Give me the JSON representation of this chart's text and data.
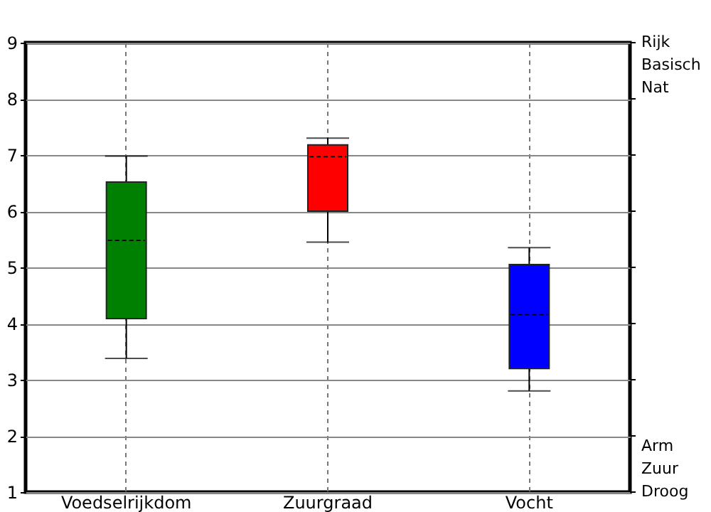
{
  "chart_data": {
    "type": "box",
    "categories": [
      "Voedselrijkdom",
      "Zuurgraad",
      "Vocht"
    ],
    "boxes": [
      {
        "low": 3.38,
        "q1": 4.09,
        "median": 5.48,
        "q3": 6.52,
        "high": 6.98
      },
      {
        "low": 5.45,
        "q1": 6.0,
        "median": 6.97,
        "q3": 7.18,
        "high": 7.3
      },
      {
        "low": 2.8,
        "q1": 3.2,
        "median": 4.16,
        "q3": 5.05,
        "high": 5.35
      }
    ],
    "colors": [
      "#008000",
      "#ff0000",
      "#0000ff"
    ],
    "ylim": [
      1,
      9
    ],
    "yticks": [
      1,
      2,
      3,
      4,
      5,
      6,
      7,
      8,
      9
    ],
    "grid": true,
    "annotations": [
      "Rijk\nBasisch\nNat",
      "Arm\nZuur\nDroog"
    ]
  }
}
